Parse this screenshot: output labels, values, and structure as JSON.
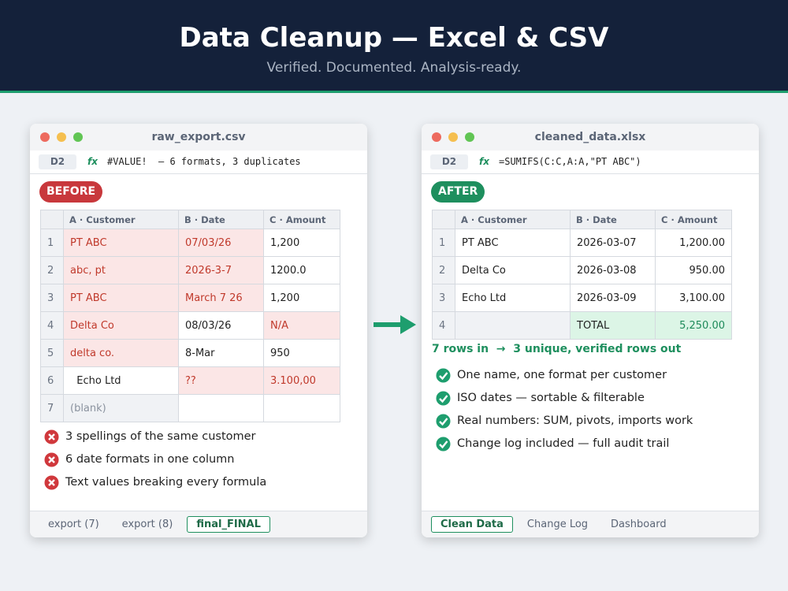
{
  "header": {
    "title": "Data Cleanup — Excel & CSV",
    "subtitle": "Verified. Documented. Analysis-ready."
  },
  "windows": [
    {
      "filename": "raw_export.csv",
      "cell_ref": "D2",
      "fx": "fx",
      "formula": "#VALUE!  — 6 formats, 3 duplicates",
      "badge": "BEFORE",
      "accent": "#c8383c",
      "highlight_bg": "#fbe6e6",
      "highlight_text": "#c0392b",
      "columns": [
        "A · Customer",
        "B · Date",
        "C · Amount"
      ],
      "align": [
        "left",
        "left",
        "left"
      ],
      "rows": [
        {
          "num": "1",
          "cells": [
            "PT ABC",
            "07/03/26",
            "1,200"
          ],
          "flagged": [
            0,
            1
          ]
        },
        {
          "num": "2",
          "cells": [
            "abc, pt",
            "2026-3-7",
            "1200.0"
          ],
          "flagged": [
            0,
            1
          ]
        },
        {
          "num": "3",
          "cells": [
            "PT ABC",
            "March 7 26",
            "1,200"
          ],
          "flagged": [
            0,
            1
          ]
        },
        {
          "num": "4",
          "cells": [
            "Delta Co",
            "08/03/26",
            "N/A"
          ],
          "flagged": [
            0,
            2
          ]
        },
        {
          "num": "5",
          "cells": [
            "delta co.",
            "8-Mar",
            "950"
          ],
          "flagged": [
            0
          ]
        },
        {
          "num": "6",
          "cells": [
            "  Echo Ltd",
            "??",
            "3.100,00"
          ],
          "flagged": [
            1,
            2
          ]
        },
        {
          "num": "7",
          "cells": [
            "(blank)",
            null,
            null
          ],
          "muted": [
            0
          ]
        }
      ],
      "list_icon": "error",
      "list": [
        "3 spellings of the same customer",
        "6 date formats in one column",
        "Text values breaking every formula"
      ],
      "tabs": [
        "export (7)",
        "export (8)",
        "final_FINAL"
      ],
      "active_tab": 2
    },
    {
      "filename": "cleaned_data.xlsx",
      "cell_ref": "D2",
      "fx": "fx",
      "formula": "=SUMIFS(C:C,A:A,\"PT ABC\")",
      "badge": "AFTER",
      "accent": "#1e8f5e",
      "highlight_bg": "#dcf5e6",
      "highlight_text": "#1e8a5a",
      "columns": [
        "A · Customer",
        "B · Date",
        "C · Amount"
      ],
      "align": [
        "left",
        "left",
        "right"
      ],
      "rows": [
        {
          "num": "1",
          "cells": [
            "PT ABC",
            "2026-03-07",
            "1,200.00"
          ]
        },
        {
          "num": "2",
          "cells": [
            "Delta Co",
            "2026-03-08",
            "950.00"
          ]
        },
        {
          "num": "3",
          "cells": [
            "Echo Ltd",
            "2026-03-09",
            "3,100.00"
          ]
        },
        {
          "num": "4",
          "cells": [
            null,
            "TOTAL",
            "5,250.00"
          ],
          "flagged": [
            1,
            2
          ],
          "muted": [
            0
          ]
        }
      ],
      "summary": "7 rows in  →  3 unique, verified rows out",
      "list_icon": "check",
      "list": [
        "One name, one format per customer",
        "ISO dates — sortable & filterable",
        "Real numbers: SUM, pivots, imports work",
        "Change log included — full audit trail"
      ],
      "tabs": [
        "Clean Data",
        "Change Log",
        "Dashboard"
      ],
      "active_tab": 0
    }
  ]
}
